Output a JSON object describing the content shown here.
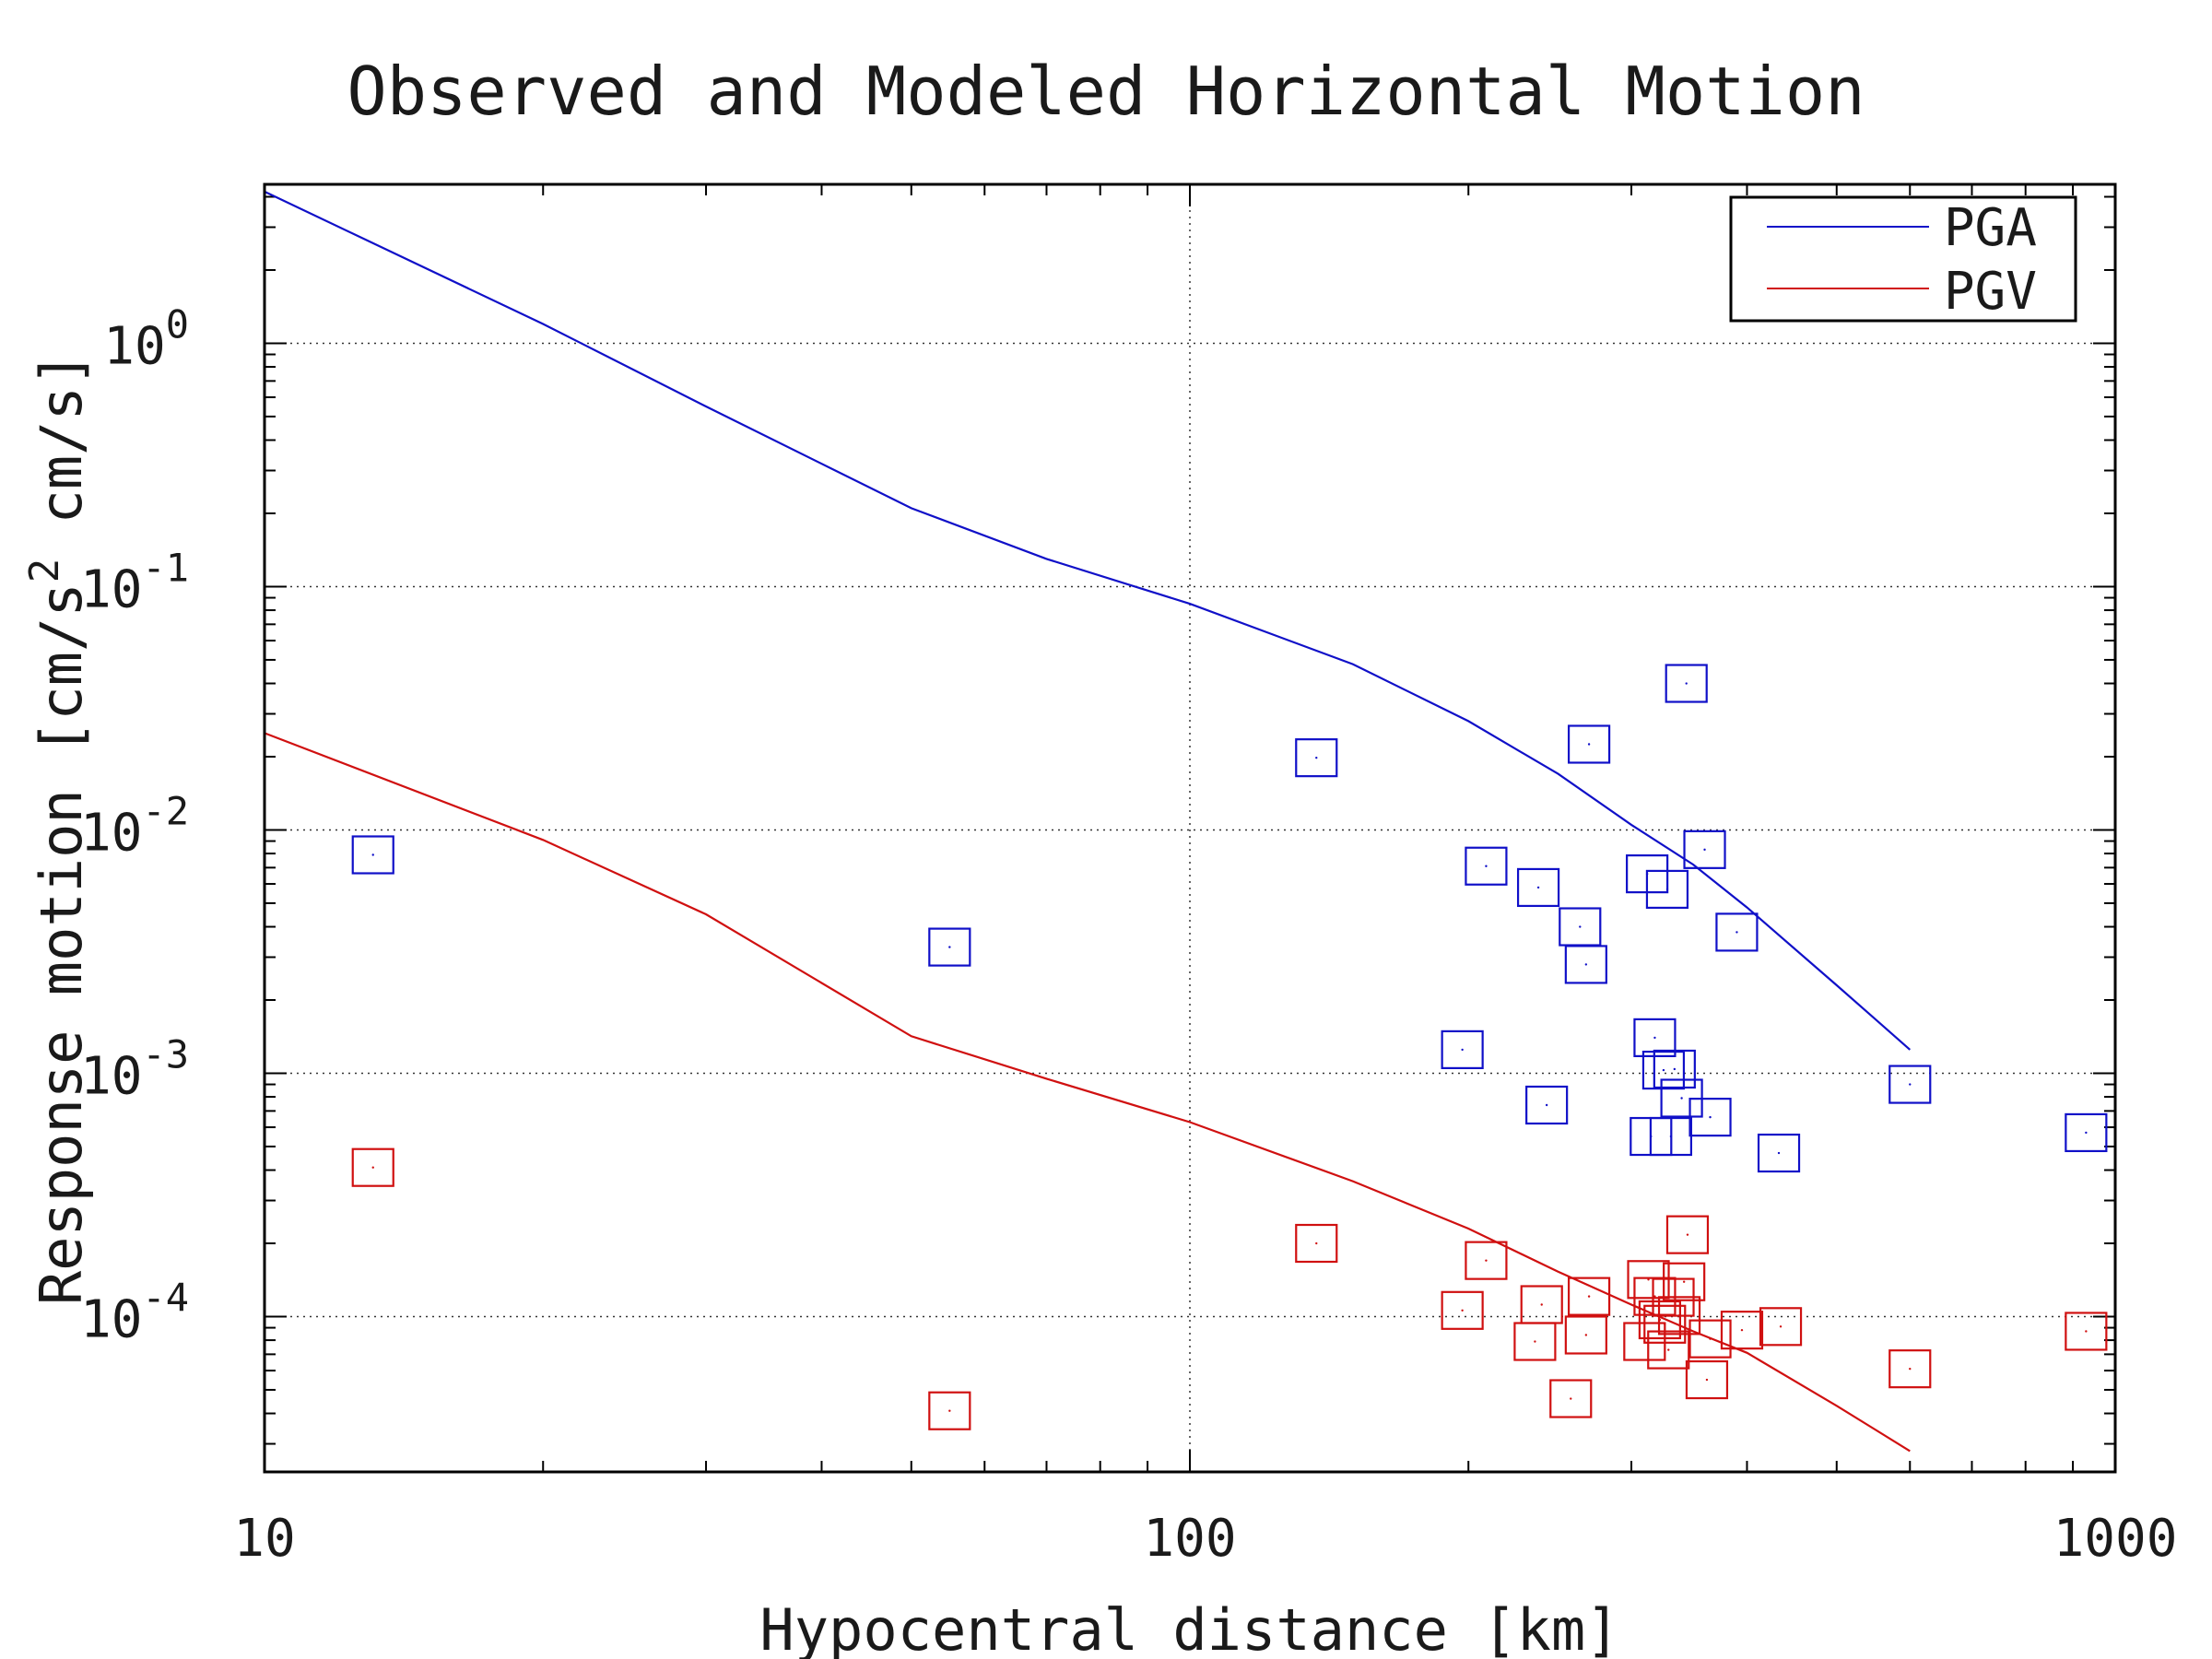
{
  "chart_data": {
    "type": "scatter",
    "title": "Observed and Modeled Horizontal Motion",
    "xlabel": "Hypocentral distance [km]",
    "ylabel_parts": [
      "Response motion  [cm/s",
      "2",
      "  cm/s]"
    ],
    "xscale": "log",
    "yscale": "log",
    "xlim": [
      10,
      1000
    ],
    "ylim": [
      2.3e-05,
      4.5
    ],
    "grid": true,
    "legend_position": "top-right",
    "x_ticks": [
      {
        "value": 10,
        "label": "10"
      },
      {
        "value": 100,
        "label": "100"
      },
      {
        "value": 1000,
        "label": "1000"
      }
    ],
    "y_ticks": [
      {
        "value": 1,
        "base": "10",
        "exp": "0"
      },
      {
        "value": 0.1,
        "base": "10",
        "exp": "-1"
      },
      {
        "value": 0.01,
        "base": "10",
        "exp": "-2"
      },
      {
        "value": 0.001,
        "base": "10",
        "exp": "-3"
      },
      {
        "value": 0.0001,
        "base": "10",
        "exp": "-4"
      }
    ],
    "lines": [
      {
        "name": "PGA",
        "color": "#1010c8",
        "x": [
          10,
          20,
          30,
          50,
          70,
          100,
          150,
          200,
          250,
          300,
          350,
          400,
          500,
          600
        ],
        "y": [
          4.2,
          1.2,
          0.55,
          0.21,
          0.13,
          0.085,
          0.048,
          0.028,
          0.017,
          0.0105,
          0.0072,
          0.0048,
          0.0023,
          0.00125
        ]
      },
      {
        "name": "PGV",
        "color": "#d01010",
        "x": [
          10,
          20,
          30,
          50,
          70,
          100,
          150,
          200,
          250,
          300,
          350,
          400,
          500,
          600
        ],
        "y": [
          0.025,
          0.0091,
          0.0045,
          0.00142,
          0.00095,
          0.00063,
          0.00036,
          0.00023,
          0.000153,
          0.000112,
          8.7e-05,
          7.1e-05,
          4.3e-05,
          2.8e-05
        ]
      }
    ],
    "points": [
      {
        "name": "PGA",
        "color": "#1010c8",
        "x": [
          13.1,
          55,
          137,
          197,
          209,
          238,
          243,
          264,
          268,
          270,
          312,
          315,
          318,
          325,
          328,
          331,
          334,
          340,
          344,
          360,
          365,
          390,
          433,
          930,
          600
        ],
        "y": [
          0.0079,
          0.0033,
          0.0198,
          0.00125,
          0.0071,
          0.0058,
          0.00074,
          0.004,
          0.0028,
          0.0225,
          0.0066,
          0.00055,
          0.0014,
          0.00103,
          0.0057,
          0.00055,
          0.00104,
          0.00079,
          0.04,
          0.0083,
          0.00066,
          0.0038,
          0.00047,
          0.00057,
          0.0009
        ]
      },
      {
        "name": "PGV",
        "color": "#d01010",
        "x": [
          13.1,
          55,
          137,
          197,
          209,
          236,
          240,
          258,
          268,
          270,
          310,
          313,
          318,
          322,
          326,
          329,
          333,
          338,
          342,
          345,
          362,
          365,
          395,
          435,
          600,
          930
        ],
        "y": [
          0.00041,
          4.1e-05,
          0.0002,
          0.000106,
          0.00017,
          7.9e-05,
          0.000112,
          4.6e-05,
          8.4e-05,
          0.000121,
          7.9e-05,
          0.000142,
          0.000121,
          9.7e-05,
          9.3e-05,
          7.3e-05,
          0.00012,
          0.000101,
          0.000139,
          0.000217,
          5.5e-05,
          8.1e-05,
          8.8e-05,
          9.1e-05,
          6.1e-05,
          8.7e-05
        ]
      }
    ],
    "legend": [
      {
        "label": "PGA",
        "color": "#1010c8"
      },
      {
        "label": "PGV",
        "color": "#d01010"
      }
    ]
  }
}
